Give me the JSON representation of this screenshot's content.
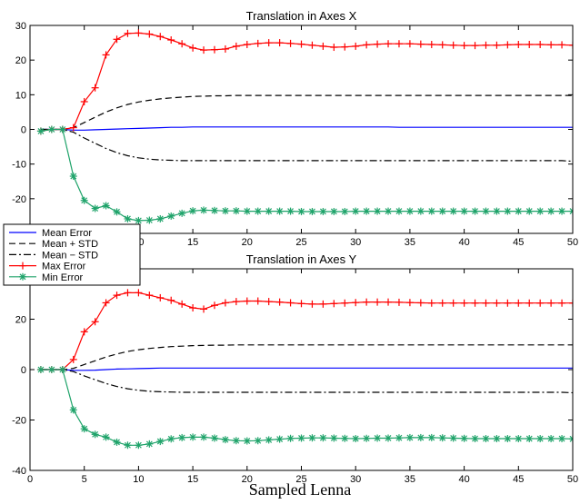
{
  "chart_data": [
    {
      "type": "line",
      "title": "Translation in Axes X",
      "xlabel": "",
      "ylabel": "",
      "xlim": [
        0,
        50
      ],
      "ylim": [
        -30,
        30
      ],
      "xticks": [
        0,
        5,
        10,
        15,
        20,
        25,
        30,
        35,
        40,
        45,
        50
      ],
      "yticks": [
        -30,
        -20,
        -10,
        0,
        10,
        20,
        30
      ],
      "grid": false,
      "x": [
        1,
        2,
        3,
        4,
        5,
        6,
        7,
        8,
        9,
        10,
        11,
        12,
        13,
        14,
        15,
        16,
        17,
        18,
        19,
        20,
        21,
        22,
        23,
        24,
        25,
        26,
        27,
        28,
        29,
        30,
        31,
        32,
        33,
        34,
        35,
        36,
        37,
        38,
        39,
        40,
        41,
        42,
        43,
        44,
        45,
        46,
        47,
        48,
        49,
        50
      ],
      "series": [
        {
          "name": "Mean Error",
          "color": "#0000ff",
          "style": "solid",
          "marker": "none",
          "values": [
            0,
            0,
            0,
            -0.2,
            -0.2,
            -0.1,
            0,
            0.1,
            0.2,
            0.3,
            0.4,
            0.5,
            0.6,
            0.6,
            0.7,
            0.7,
            0.7,
            0.7,
            0.7,
            0.7,
            0.7,
            0.7,
            0.7,
            0.7,
            0.7,
            0.7,
            0.7,
            0.7,
            0.7,
            0.7,
            0.7,
            0.7,
            0.7,
            0.6,
            0.6,
            0.6,
            0.6,
            0.6,
            0.6,
            0.6,
            0.6,
            0.6,
            0.6,
            0.6,
            0.6,
            0.6,
            0.6,
            0.6,
            0.6,
            0.6
          ]
        },
        {
          "name": "Mean + STD",
          "color": "#000000",
          "style": "dashed",
          "marker": "none",
          "values": [
            0,
            0,
            0,
            0.5,
            2,
            3.5,
            5,
            6.2,
            7.2,
            7.9,
            8.4,
            8.8,
            9.1,
            9.3,
            9.5,
            9.6,
            9.7,
            9.7,
            9.8,
            9.8,
            9.8,
            9.8,
            9.8,
            9.8,
            9.8,
            9.8,
            9.8,
            9.8,
            9.8,
            9.8,
            9.8,
            9.8,
            9.8,
            9.8,
            9.8,
            9.8,
            9.8,
            9.8,
            9.8,
            9.8,
            9.8,
            9.8,
            9.8,
            9.8,
            9.8,
            9.8,
            9.8,
            9.8,
            9.8,
            9.8
          ]
        },
        {
          "name": "Mean − STD",
          "color": "#000000",
          "style": "dashdot",
          "marker": "none",
          "values": [
            0,
            0,
            0,
            -0.8,
            -2.5,
            -4,
            -5.5,
            -6.7,
            -7.6,
            -8.2,
            -8.6,
            -8.8,
            -8.9,
            -9,
            -9,
            -9,
            -9,
            -9,
            -9,
            -9,
            -9,
            -9,
            -9,
            -9,
            -9,
            -9,
            -9,
            -9,
            -9,
            -9,
            -9,
            -9,
            -9,
            -9,
            -9,
            -9,
            -9,
            -9,
            -9,
            -9,
            -9,
            -9,
            -9,
            -9,
            -9,
            -9,
            -9,
            -9,
            -9,
            -9.2
          ]
        },
        {
          "name": "Max Error",
          "color": "#ff0000",
          "style": "solid",
          "marker": "plus",
          "values": [
            -0.5,
            0,
            0,
            0.5,
            8,
            12,
            21.5,
            26,
            27.7,
            27.8,
            27.5,
            26.8,
            25.8,
            24.7,
            23.5,
            22.9,
            23,
            23.2,
            24,
            24.5,
            24.8,
            25,
            25,
            24.8,
            24.6,
            24.3,
            24,
            23.7,
            23.8,
            24,
            24.4,
            24.6,
            24.7,
            24.7,
            24.7,
            24.6,
            24.5,
            24.4,
            24.3,
            24.2,
            24.2,
            24.3,
            24.3,
            24.4,
            24.5,
            24.5,
            24.5,
            24.4,
            24.4,
            24.3
          ]
        },
        {
          "name": "Min Error",
          "color": "#1fa36a",
          "style": "solid",
          "marker": "star",
          "values": [
            -0.5,
            0,
            0,
            -13.5,
            -20.5,
            -22.8,
            -22,
            -23.8,
            -25.8,
            -26.3,
            -26.2,
            -25.8,
            -25,
            -24.2,
            -23.5,
            -23.3,
            -23.4,
            -23.5,
            -23.5,
            -23.6,
            -23.6,
            -23.6,
            -23.6,
            -23.6,
            -23.7,
            -23.7,
            -23.7,
            -23.7,
            -23.7,
            -23.6,
            -23.6,
            -23.6,
            -23.6,
            -23.6,
            -23.6,
            -23.6,
            -23.6,
            -23.6,
            -23.6,
            -23.6,
            -23.6,
            -23.6,
            -23.6,
            -23.6,
            -23.6,
            -23.6,
            -23.6,
            -23.6,
            -23.6,
            -23.6
          ]
        }
      ]
    },
    {
      "type": "line",
      "title": "Translation in Axes Y",
      "xlabel": "",
      "ylabel": "",
      "xlim": [
        0,
        50
      ],
      "ylim": [
        -40,
        40
      ],
      "xticks": [
        0,
        5,
        10,
        15,
        20,
        25,
        30,
        35,
        40,
        45,
        50
      ],
      "yticks": [
        -40,
        -20,
        0,
        20,
        40
      ],
      "grid": false,
      "x": [
        1,
        2,
        3,
        4,
        5,
        6,
        7,
        8,
        9,
        10,
        11,
        12,
        13,
        14,
        15,
        16,
        17,
        18,
        19,
        20,
        21,
        22,
        23,
        24,
        25,
        26,
        27,
        28,
        29,
        30,
        31,
        32,
        33,
        34,
        35,
        36,
        37,
        38,
        39,
        40,
        41,
        42,
        43,
        44,
        45,
        46,
        47,
        48,
        49,
        50
      ],
      "series": [
        {
          "name": "Mean Error",
          "color": "#0000ff",
          "style": "solid",
          "marker": "none",
          "values": [
            0,
            0,
            0,
            -0.3,
            -0.3,
            -0.2,
            0,
            0.2,
            0.3,
            0.4,
            0.5,
            0.6,
            0.6,
            0.6,
            0.6,
            0.6,
            0.6,
            0.6,
            0.6,
            0.6,
            0.6,
            0.6,
            0.6,
            0.6,
            0.6,
            0.6,
            0.6,
            0.6,
            0.6,
            0.6,
            0.6,
            0.6,
            0.6,
            0.6,
            0.6,
            0.6,
            0.6,
            0.6,
            0.6,
            0.6,
            0.6,
            0.6,
            0.6,
            0.6,
            0.6,
            0.6,
            0.6,
            0.6,
            0.6,
            0.6
          ]
        },
        {
          "name": "Mean + STD",
          "color": "#000000",
          "style": "dashed",
          "marker": "none",
          "values": [
            0,
            0,
            0,
            0.5,
            2,
            3.5,
            5,
            6.2,
            7.2,
            7.9,
            8.4,
            8.8,
            9.1,
            9.3,
            9.5,
            9.6,
            9.7,
            9.7,
            9.8,
            9.8,
            9.8,
            9.8,
            9.8,
            9.8,
            9.8,
            9.8,
            9.8,
            9.8,
            9.8,
            9.8,
            9.8,
            9.8,
            9.8,
            9.8,
            9.8,
            9.8,
            9.8,
            9.8,
            9.8,
            9.8,
            9.8,
            9.8,
            9.8,
            9.8,
            9.8,
            9.8,
            9.8,
            9.8,
            9.8,
            9.8
          ]
        },
        {
          "name": "Mean − STD",
          "color": "#000000",
          "style": "dashdot",
          "marker": "none",
          "values": [
            0,
            0,
            0,
            -0.8,
            -2.5,
            -4,
            -5.5,
            -6.7,
            -7.6,
            -8.2,
            -8.6,
            -8.8,
            -8.9,
            -9,
            -9,
            -9,
            -9,
            -9,
            -9,
            -9,
            -9,
            -9,
            -9,
            -9,
            -9,
            -9,
            -9,
            -9,
            -9,
            -9,
            -9,
            -9,
            -9,
            -9,
            -9,
            -9,
            -9,
            -9,
            -9,
            -9,
            -9,
            -9,
            -9,
            -9,
            -9,
            -9,
            -9,
            -9,
            -9,
            -9.2
          ]
        },
        {
          "name": "Max Error",
          "color": "#ff0000",
          "style": "solid",
          "marker": "plus",
          "values": [
            0,
            0,
            0,
            4,
            15,
            19,
            26.5,
            29.5,
            30.5,
            30.5,
            29.5,
            28.5,
            27.5,
            26,
            24.5,
            24,
            25.5,
            26.5,
            27,
            27.2,
            27.2,
            27,
            26.8,
            26.5,
            26.2,
            26,
            26,
            26.2,
            26.4,
            26.6,
            26.8,
            26.8,
            26.8,
            26.7,
            26.6,
            26.5,
            26.4,
            26.4,
            26.4,
            26.4,
            26.4,
            26.4,
            26.4,
            26.4,
            26.4,
            26.4,
            26.4,
            26.4,
            26.4,
            26.4
          ]
        },
        {
          "name": "Min Error",
          "color": "#1fa36a",
          "style": "solid",
          "marker": "star",
          "values": [
            0,
            0,
            0,
            -16,
            -23.5,
            -25.7,
            -26.8,
            -28.8,
            -30,
            -30,
            -29.5,
            -28.5,
            -27.5,
            -27,
            -26.8,
            -26.8,
            -27.2,
            -27.8,
            -28.2,
            -28.3,
            -28.2,
            -27.9,
            -27.6,
            -27.3,
            -27.2,
            -27.1,
            -27.1,
            -27.2,
            -27.3,
            -27.4,
            -27.3,
            -27.2,
            -27.2,
            -27.1,
            -27,
            -27,
            -27,
            -27.1,
            -27.2,
            -27.3,
            -27.4,
            -27.4,
            -27.4,
            -27.4,
            -27.4,
            -27.4,
            -27.4,
            -27.4,
            -27.4,
            -27.5
          ]
        }
      ]
    }
  ],
  "legend": {
    "placement": "between-panels-left",
    "entries": [
      {
        "label": "Mean Error",
        "color": "#0000ff",
        "style": "solid",
        "marker": "none"
      },
      {
        "label": "Mean + STD",
        "color": "#000000",
        "style": "dashed",
        "marker": "none"
      },
      {
        "label": "Mean − STD",
        "color": "#000000",
        "style": "dashdot",
        "marker": "none"
      },
      {
        "label": "Max Error",
        "color": "#ff0000",
        "style": "solid",
        "marker": "plus"
      },
      {
        "label": "Min Error",
        "color": "#1fa36a",
        "style": "solid",
        "marker": "star"
      }
    ]
  },
  "caption": "Sampled Lenna"
}
